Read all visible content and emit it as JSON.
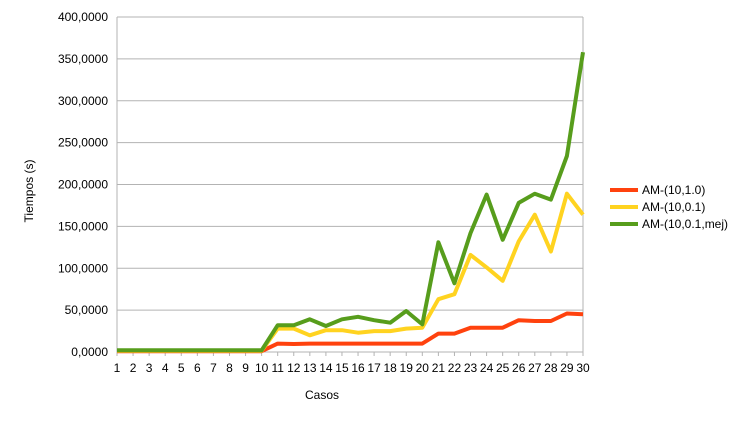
{
  "chart_data": {
    "type": "line",
    "title": "",
    "xlabel": "Casos",
    "ylabel": "Tiempos (s)",
    "ylim": [
      0,
      400000
    ],
    "yticks": [
      0,
      50000,
      100000,
      150000,
      200000,
      250000,
      300000,
      350000,
      400000
    ],
    "ytick_labels": [
      "0,0000",
      "50,0000",
      "100,0000",
      "150,0000",
      "200,0000",
      "250,0000",
      "300,0000",
      "350,0000",
      "400,0000"
    ],
    "grid": true,
    "legend_position": "right",
    "categories": [
      "1",
      "2",
      "3",
      "4",
      "5",
      "6",
      "7",
      "8",
      "9",
      "10",
      "11",
      "12",
      "13",
      "14",
      "15",
      "16",
      "17",
      "18",
      "19",
      "20",
      "21",
      "22",
      "23",
      "24",
      "25",
      "26",
      "27",
      "28",
      "29",
      "30"
    ],
    "series": [
      {
        "name": "AM-(10,1.0)",
        "color": "#ff420e",
        "values": [
          1000,
          1000,
          1000,
          1000,
          1000,
          1000,
          1000,
          1000,
          1000,
          1000,
          10000,
          9500,
          10000,
          10000,
          10000,
          10000,
          10000,
          10000,
          10000,
          10000,
          22000,
          22000,
          29000,
          29000,
          29000,
          38000,
          37000,
          37000,
          46000,
          45000
        ]
      },
      {
        "name": "AM-(10,0.1)",
        "color": "#ffd320",
        "values": [
          1500,
          1500,
          1500,
          1500,
          1500,
          1500,
          1500,
          1500,
          1500,
          1500,
          28000,
          28000,
          20000,
          26000,
          26000,
          23000,
          25000,
          25000,
          28000,
          29000,
          63000,
          69000,
          116000,
          101000,
          85000,
          132000,
          164000,
          120000,
          189000,
          164000
        ]
      },
      {
        "name": "AM-(10,0.1,mej)",
        "color": "#579d1c",
        "values": [
          2000,
          2000,
          2000,
          2000,
          2000,
          2000,
          2000,
          2000,
          2000,
          2000,
          32000,
          32000,
          39000,
          31000,
          39000,
          42000,
          38000,
          35000,
          49000,
          33000,
          131000,
          82000,
          142000,
          188000,
          134000,
          178000,
          189000,
          182000,
          234000,
          358000
        ]
      }
    ]
  }
}
